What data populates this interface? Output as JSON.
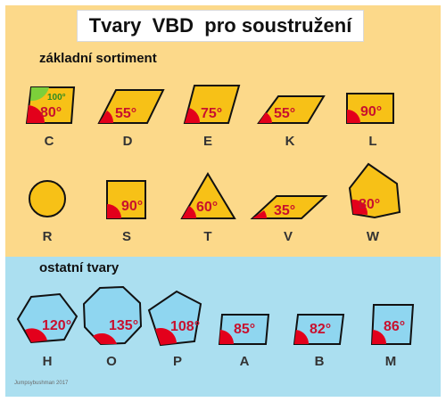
{
  "title": "Tvary  VBD  pro soustružení",
  "sections": {
    "basic": "základní sortiment",
    "other": "ostatní tvary"
  },
  "shapes": {
    "C": {
      "label": "C",
      "angle": "80°",
      "angle2": "100°"
    },
    "D": {
      "label": "D",
      "angle": "55°"
    },
    "E": {
      "label": "E",
      "angle": "75°"
    },
    "K": {
      "label": "K",
      "angle": "55°"
    },
    "L": {
      "label": "L",
      "angle": "90°"
    },
    "R": {
      "label": "R"
    },
    "S": {
      "label": "S",
      "angle": "90°"
    },
    "T": {
      "label": "T",
      "angle": "60°"
    },
    "V": {
      "label": "V",
      "angle": "35°"
    },
    "W": {
      "label": "W",
      "angle": "80°"
    },
    "H": {
      "label": "H",
      "angle": "120°"
    },
    "O": {
      "label": "O",
      "angle": "135°"
    },
    "P": {
      "label": "P",
      "angle": "108°"
    },
    "A": {
      "label": "A",
      "angle": "85°"
    },
    "B": {
      "label": "B",
      "angle": "82°"
    },
    "M": {
      "label": "M",
      "angle": "86°"
    }
  },
  "credit": "Jumpsybushman  2017",
  "colors": {
    "top_background": "#fcd98a",
    "bottom_background": "#abdff0",
    "insert_yellow": "#f7c117",
    "insert_blue": "#8fd6f0",
    "angle_red": "#e3001b",
    "angle_green": "#7ccf3a"
  }
}
